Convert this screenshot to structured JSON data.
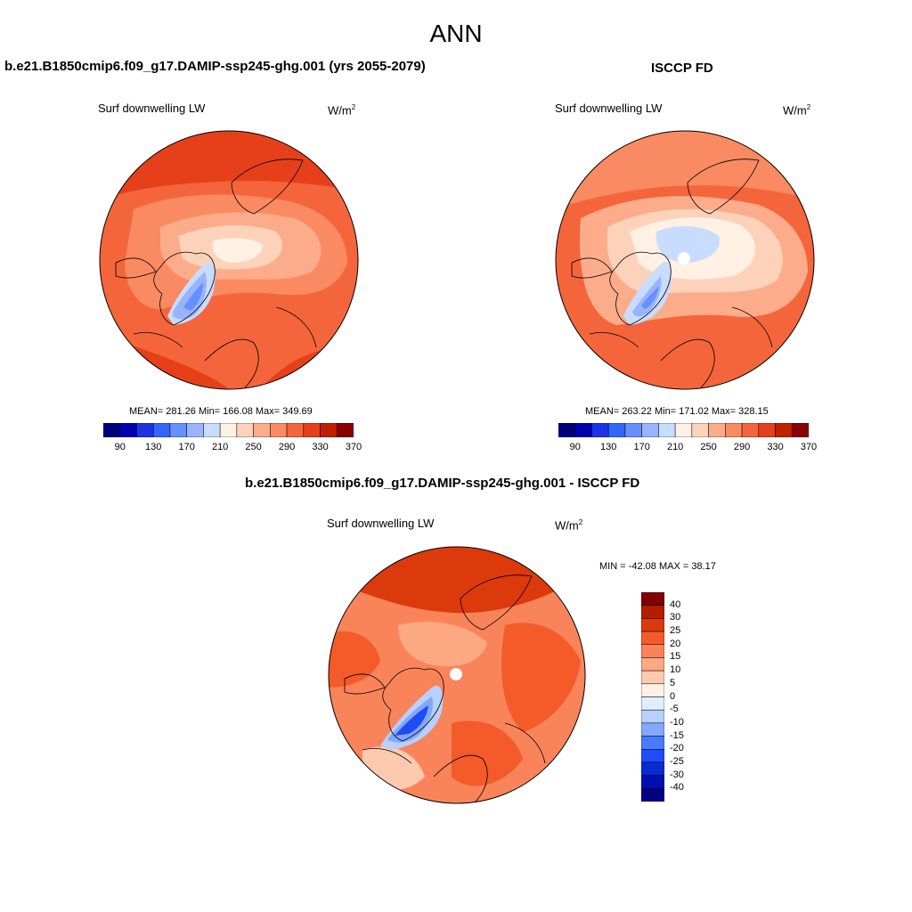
{
  "page_title": "ANN",
  "panels": [
    {
      "title": "b.e21.B1850cmip6.f09_g17.DAMIP-ssp245-ghg.001 (yrs 2055-2079)",
      "variable": "Surf downwelling LW",
      "units": "W/m",
      "units_exp": "2",
      "stats": "MEAN= 281.26  Min= 166.08  Max= 349.69"
    },
    {
      "title": "ISCCP FD",
      "variable": "Surf downwelling LW",
      "units": "W/m",
      "units_exp": "2",
      "stats": "MEAN= 263.22  Min= 171.02  Max= 328.15"
    },
    {
      "title": "b.e21.B1850cmip6.f09_g17.DAMIP-ssp245-ghg.001 - ISCCP FD",
      "variable": "Surf downwelling LW",
      "units": "W/m",
      "units_exp": "2",
      "stats": "MIN = -42.08 MAX =  38.17"
    }
  ],
  "abs_colorbar": {
    "colors": [
      "#00007f",
      "#0000b3",
      "#1a33e6",
      "#3366ff",
      "#6690ff",
      "#99b3ff",
      "#c8dcff",
      "#fff0e4",
      "#fdd2bb",
      "#fcac8a",
      "#fa8a62",
      "#f5653c",
      "#e6401a",
      "#bf2000",
      "#8b0000"
    ],
    "tick_labels": [
      "90",
      "130",
      "170",
      "210",
      "250",
      "290",
      "330",
      "370"
    ]
  },
  "diff_colorbar": {
    "colors": [
      "#000080",
      "#0010b0",
      "#0a2ad6",
      "#1e4cf5",
      "#4a7aff",
      "#82a8ff",
      "#b8d0ff",
      "#dfeeff",
      "#fff0e4",
      "#fdcab0",
      "#fca882",
      "#fa845a",
      "#f45a2a",
      "#dc3a0c",
      "#b41e00",
      "#800000"
    ],
    "tick_labels": [
      "40",
      "30",
      "25",
      "20",
      "15",
      "10",
      "5",
      "0",
      "-5",
      "-10",
      "-15",
      "-20",
      "-25",
      "-30",
      "-40"
    ]
  }
}
